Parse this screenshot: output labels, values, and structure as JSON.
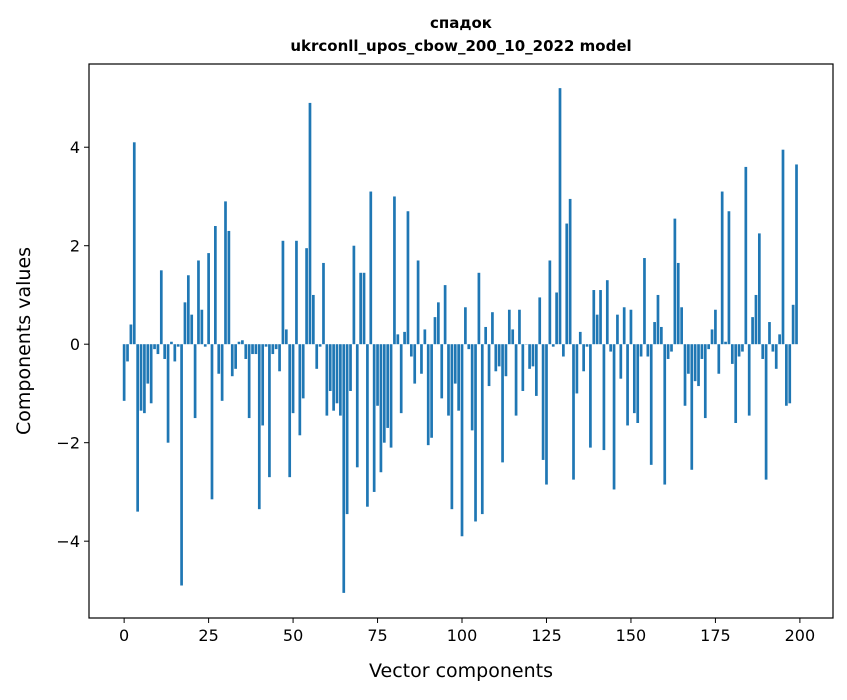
{
  "chart_data": {
    "type": "bar",
    "title_line1": "спадок",
    "title_line2": "ukrconll_upos_cbow_200_10_2022 model",
    "xlabel": "Vector components",
    "ylabel": "Components values",
    "xlim": [
      -10.4,
      209.8
    ],
    "ylim": [
      -5.56,
      5.69
    ],
    "xticks": [
      0,
      25,
      50,
      75,
      100,
      125,
      150,
      175,
      200
    ],
    "xtick_labels": [
      "0",
      "25",
      "50",
      "75",
      "100",
      "125",
      "150",
      "175",
      "200"
    ],
    "yticks": [
      -4,
      -2,
      0,
      2,
      4
    ],
    "ytick_labels": [
      "−4",
      "−2",
      "0",
      "2",
      "4"
    ],
    "grid": false,
    "bar_color": "#1f77b4",
    "values": [
      -1.15,
      -0.35,
      0.4,
      4.1,
      -3.4,
      -1.35,
      -1.4,
      -0.8,
      -1.2,
      -0.1,
      -0.2,
      1.5,
      -0.3,
      -2.0,
      0.05,
      -0.35,
      -0.05,
      -4.9,
      0.85,
      1.4,
      0.6,
      -1.5,
      1.7,
      0.7,
      -0.05,
      1.85,
      -3.15,
      2.4,
      -0.6,
      -1.15,
      2.9,
      2.3,
      -0.65,
      -0.5,
      0.05,
      0.08,
      -0.3,
      -1.5,
      -0.2,
      -0.2,
      -3.35,
      -1.65,
      -0.05,
      -2.7,
      -0.2,
      -0.1,
      -0.55,
      2.1,
      0.3,
      -2.7,
      -1.4,
      2.1,
      -1.85,
      -1.1,
      1.95,
      4.9,
      1.0,
      -0.5,
      -0.05,
      1.65,
      -1.45,
      -0.95,
      -1.35,
      -1.2,
      -1.45,
      -5.05,
      -3.45,
      -0.95,
      2.0,
      -2.5,
      1.45,
      1.45,
      -3.3,
      3.1,
      -3.0,
      -1.25,
      -2.6,
      -2.0,
      -1.7,
      -2.1,
      3.0,
      0.2,
      -1.4,
      0.25,
      2.7,
      -0.25,
      -0.8,
      1.7,
      -0.6,
      0.3,
      -2.05,
      -1.9,
      0.55,
      0.85,
      -1.1,
      1.2,
      -1.45,
      -3.35,
      -0.8,
      -1.35,
      -3.9,
      0.75,
      -0.1,
      -1.75,
      -3.6,
      1.45,
      -3.45,
      0.35,
      -0.85,
      0.65,
      -0.55,
      -0.45,
      -2.4,
      -0.65,
      0.7,
      0.3,
      -1.45,
      0.7,
      -0.95,
      0.0,
      -0.5,
      -0.45,
      -1.05,
      0.95,
      -2.35,
      -2.85,
      1.7,
      -0.05,
      1.05,
      5.2,
      -0.25,
      2.45,
      2.95,
      -2.75,
      -1.0,
      0.25,
      -0.55,
      -0.05,
      -2.1,
      1.1,
      0.6,
      1.1,
      -2.15,
      1.3,
      -0.15,
      -2.95,
      0.6,
      -0.7,
      0.75,
      -1.65,
      0.7,
      -1.4,
      -1.6,
      -0.25,
      1.75,
      -0.25,
      -2.45,
      0.45,
      1.0,
      0.35,
      -2.85,
      -0.3,
      -0.15,
      2.55,
      1.65,
      0.75,
      -1.25,
      -0.6,
      -2.55,
      -0.75,
      -0.85,
      -0.3,
      -1.5,
      -0.1,
      0.3,
      0.7,
      -0.6,
      3.1,
      0.05,
      2.7,
      -0.4,
      -1.6,
      -0.25,
      -0.15,
      3.6,
      -1.45,
      0.55,
      1.0,
      2.25,
      -0.3,
      -2.75,
      0.45,
      -0.15,
      -0.5,
      0.2,
      3.95,
      -1.25,
      -1.2,
      0.8,
      3.65
    ]
  }
}
